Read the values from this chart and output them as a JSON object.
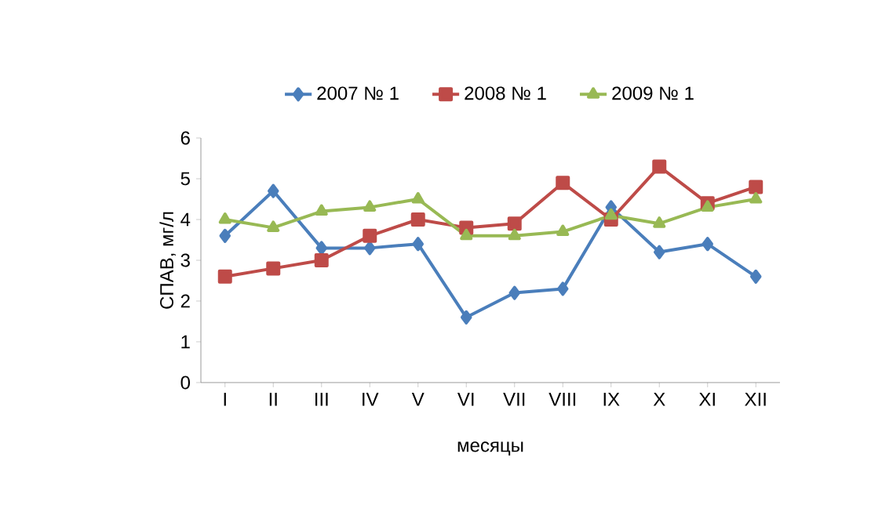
{
  "chart_data": {
    "type": "line",
    "xlabel": "месяцы",
    "ylabel": "СПАВ, мг/л",
    "categories": [
      "I",
      "II",
      "III",
      "IV",
      "V",
      "VI",
      "VII",
      "VIII",
      "IX",
      "X",
      "XI",
      "XII"
    ],
    "series": [
      {
        "name": "2007 № 1",
        "color": "#4a7ebb",
        "marker": "diamond",
        "values": [
          3.6,
          4.7,
          3.3,
          3.3,
          3.4,
          1.6,
          2.2,
          2.3,
          4.3,
          3.2,
          3.4,
          2.6
        ]
      },
      {
        "name": "2008 № 1",
        "color": "#be4b48",
        "marker": "square",
        "values": [
          2.6,
          2.8,
          3.0,
          3.6,
          4.0,
          3.8,
          3.9,
          4.9,
          4.0,
          5.3,
          4.4,
          4.8
        ]
      },
      {
        "name": "2009 № 1",
        "color": "#98b954",
        "marker": "triangle",
        "values": [
          4.0,
          3.8,
          4.2,
          4.3,
          4.5,
          3.6,
          3.6,
          3.7,
          4.1,
          3.9,
          4.3,
          4.5
        ]
      }
    ],
    "ylim": [
      0,
      6
    ],
    "yticks": [
      0,
      1,
      2,
      3,
      4,
      5,
      6
    ],
    "grid": false,
    "legend": "top",
    "line_style": "solid"
  }
}
